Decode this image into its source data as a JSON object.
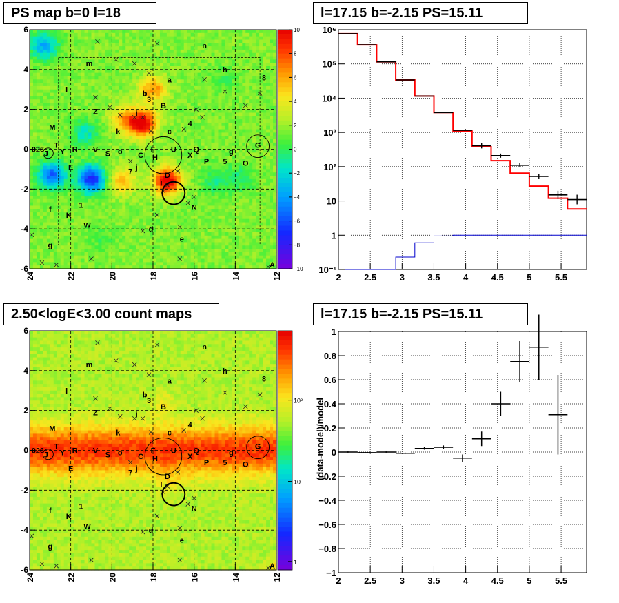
{
  "chart_data": [
    {
      "type": "heatmap",
      "title": "PS map b=0 l=18",
      "xlabel": "",
      "ylabel": "",
      "xlim": [
        24,
        12
      ],
      "ylim": [
        -6,
        6
      ],
      "x_ticks": [
        "24",
        "22",
        "20",
        "18",
        "16",
        "14",
        "12"
      ],
      "y_ticks": [
        "-6",
        "-4",
        "-2",
        "0",
        "2",
        "4",
        "6"
      ],
      "colorbar_ticks": [
        "10",
        "8",
        "6",
        "4",
        "2",
        "0",
        "−2",
        "−4",
        "−6",
        "−8",
        "−10"
      ],
      "colorbar_range": [
        -10,
        10
      ],
      "blobs": [
        {
          "l": 18.5,
          "b": 1.3,
          "level": 9
        },
        {
          "l": 17.3,
          "b": -1.6,
          "level": 9
        },
        {
          "l": 19.5,
          "b": -1.6,
          "level": 4
        },
        {
          "l": 18.0,
          "b": 3.0,
          "level": 5
        },
        {
          "l": 19.4,
          "b": 1.5,
          "level": 4
        },
        {
          "l": 21.0,
          "b": -1.5,
          "level": -9
        },
        {
          "l": 22.9,
          "b": -1.3,
          "level": -7
        },
        {
          "l": 21.3,
          "b": 0.8,
          "level": -3
        },
        {
          "l": 23.3,
          "b": 5.2,
          "level": -5
        },
        {
          "l": 15.0,
          "b": -1.6,
          "level": -2
        },
        {
          "l": 13.8,
          "b": -1.5,
          "level": -2
        },
        {
          "l": 20.5,
          "b": -4.5,
          "level": -1
        },
        {
          "l": 14.5,
          "b": 3.5,
          "level": -1
        }
      ]
    },
    {
      "type": "line",
      "title": "l=17.15 b=-2.15 PS=15.11",
      "xlabel": "",
      "ylabel": "",
      "xlim": [
        2,
        5.9
      ],
      "ylim": [
        0.1,
        1000000
      ],
      "log_y": true,
      "x_ticks": [
        "2",
        "2.5",
        "3",
        "3.5",
        "4",
        "4.5",
        "5",
        "5.5"
      ],
      "y_ticks": [
        "10⁻¹",
        "1",
        "10",
        "10²",
        "10³",
        "10⁴",
        "10⁵",
        "10⁶"
      ],
      "grid": true,
      "bin_edges": [
        2.0,
        2.3,
        2.6,
        2.9,
        3.2,
        3.5,
        3.8,
        4.1,
        4.4,
        4.7,
        5.0,
        5.3,
        5.6,
        5.9
      ],
      "series": [
        {
          "values": [
            760000,
            360000,
            115000,
            34000,
            11500,
            3800,
            1150,
            410,
            210,
            110,
            52,
            15,
            11
          ],
          "errors": [
            0,
            0,
            0,
            0,
            0,
            0,
            0,
            0.08,
            0.06,
            0.06,
            0.08,
            0.12,
            0.14
          ]
        },
        {
          "values": [
            760000,
            360000,
            115000,
            34000,
            11500,
            3800,
            1100,
            380,
            150,
            65,
            27,
            12,
            5.8
          ]
        },
        {
          "values": [
            0.1,
            0.1,
            0.1,
            0.23,
            0.6,
            0.95,
            1.0,
            1.0,
            1.0,
            1.0,
            1.0,
            1.0,
            1.0
          ]
        }
      ]
    },
    {
      "type": "heatmap",
      "title": "2.50<logE<3.00 count maps",
      "xlabel": "",
      "ylabel": "",
      "xlim": [
        24,
        12
      ],
      "ylim": [
        -6,
        6
      ],
      "x_ticks": [
        "24",
        "22",
        "20",
        "18",
        "16",
        "14",
        "12"
      ],
      "y_ticks": [
        "-6",
        "-4",
        "-2",
        "0",
        "2",
        "4",
        "6"
      ],
      "colorbar_ticks": [
        "10²",
        "10",
        "1"
      ],
      "colorbar_log": true
    },
    {
      "type": "scatter",
      "title": "l=17.15 b=-2.15 PS=15.11",
      "xlabel": "",
      "ylabel": "(data-model)/model",
      "xlim": [
        2,
        5.9
      ],
      "ylim": [
        -1,
        1
      ],
      "x_ticks": [
        "2",
        "2.5",
        "3",
        "3.5",
        "4",
        "4.5",
        "5",
        "5.5"
      ],
      "y_ticks": [
        "−1",
        "−0.8",
        "−0.6",
        "−0.4",
        "−0.2",
        "0",
        "0.2",
        "0.4",
        "0.6",
        "0.8",
        "1"
      ],
      "grid": true,
      "points": [
        {
          "x": 2.15,
          "y": 0.0,
          "ey": 0.005
        },
        {
          "x": 2.45,
          "y": -0.005,
          "ey": 0.005
        },
        {
          "x": 2.75,
          "y": 0.0,
          "ey": 0.005
        },
        {
          "x": 3.05,
          "y": -0.01,
          "ey": 0.005
        },
        {
          "x": 3.35,
          "y": 0.03,
          "ey": 0.01
        },
        {
          "x": 3.65,
          "y": 0.04,
          "ey": 0.015
        },
        {
          "x": 3.95,
          "y": -0.05,
          "ey": 0.03
        },
        {
          "x": 4.25,
          "y": 0.11,
          "ey": 0.06
        },
        {
          "x": 4.55,
          "y": 0.4,
          "ey": 0.1
        },
        {
          "x": 4.85,
          "y": 0.75,
          "ey": 0.17
        },
        {
          "x": 5.15,
          "y": 0.87,
          "ey": 0.27
        },
        {
          "x": 5.45,
          "y": 0.31,
          "ey": 0.33
        }
      ]
    }
  ],
  "sources": [
    {
      "label": "n",
      "l": 15.5,
      "b": 5.2
    },
    {
      "label": "m",
      "l": 21.1,
      "b": 4.3
    },
    {
      "label": "h",
      "l": 14.5,
      "b": 4.0
    },
    {
      "label": "8",
      "l": 12.6,
      "b": 3.6
    },
    {
      "label": "a",
      "l": 17.2,
      "b": 3.5
    },
    {
      "label": "l",
      "l": 22.2,
      "b": 3.0
    },
    {
      "label": "b",
      "l": 18.4,
      "b": 2.8
    },
    {
      "label": "3",
      "l": 18.2,
      "b": 2.5
    },
    {
      "label": "B",
      "l": 17.5,
      "b": 2.2
    },
    {
      "label": "Z",
      "l": 20.8,
      "b": 1.9
    },
    {
      "label": "i",
      "l": 18.8,
      "b": 1.8
    },
    {
      "label": "M",
      "l": 22.9,
      "b": 1.1
    },
    {
      "label": "k",
      "l": 19.7,
      "b": 0.9
    },
    {
      "label": "c",
      "l": 17.2,
      "b": 0.9
    },
    {
      "label": "4",
      "l": 16.2,
      "b": 1.3
    },
    {
      "label": "G",
      "l": 12.9,
      "b": 0.2
    },
    {
      "label": "0",
      "l": 23.8,
      "b": 0.0
    },
    {
      "label": "2",
      "l": 23.6,
      "b": 0.0
    },
    {
      "label": "6",
      "l": 23.4,
      "b": 0.0
    },
    {
      "label": "J",
      "l": 23.2,
      "b": -0.2
    },
    {
      "label": "T",
      "l": 22.7,
      "b": 0.2
    },
    {
      "label": "Y",
      "l": 22.4,
      "b": -0.1
    },
    {
      "label": "R",
      "l": 21.8,
      "b": 0.0
    },
    {
      "label": "V",
      "l": 20.8,
      "b": 0.0
    },
    {
      "label": "S",
      "l": 20.2,
      "b": -0.2
    },
    {
      "label": "o",
      "l": 19.6,
      "b": -0.1
    },
    {
      "label": "F",
      "l": 18.0,
      "b": 0.0
    },
    {
      "label": "U",
      "l": 17.0,
      "b": 0.0
    },
    {
      "label": "X",
      "l": 16.2,
      "b": -0.3
    },
    {
      "label": "Q",
      "l": 15.9,
      "b": 0.0
    },
    {
      "label": "g",
      "l": 14.2,
      "b": -0.1
    },
    {
      "label": "C",
      "l": 18.6,
      "b": -0.3
    },
    {
      "label": "H",
      "l": 17.9,
      "b": -0.4
    },
    {
      "label": "P",
      "l": 15.4,
      "b": -0.6
    },
    {
      "label": "5",
      "l": 14.5,
      "b": -0.6
    },
    {
      "label": "O",
      "l": 13.5,
      "b": -0.7
    },
    {
      "label": "E",
      "l": 22.0,
      "b": -0.9
    },
    {
      "label": "7",
      "l": 19.1,
      "b": -1.1
    },
    {
      "label": "j",
      "l": 18.8,
      "b": -0.9
    },
    {
      "label": "D",
      "l": 17.3,
      "b": -1.3
    },
    {
      "label": "I",
      "l": 17.6,
      "b": -1.7
    },
    {
      "label": "1",
      "l": 21.5,
      "b": -2.8
    },
    {
      "label": "N",
      "l": 16.0,
      "b": -2.9
    },
    {
      "label": "f",
      "l": 23.0,
      "b": -3.0
    },
    {
      "label": "K",
      "l": 22.1,
      "b": -3.3
    },
    {
      "label": "W",
      "l": 21.2,
      "b": -3.8
    },
    {
      "label": "d",
      "l": 18.1,
      "b": -4.0
    },
    {
      "label": "e",
      "l": 16.6,
      "b": -4.5
    },
    {
      "label": "g",
      "l": 23.0,
      "b": -4.8
    },
    {
      "label": "A",
      "l": 12.2,
      "b": -5.8
    }
  ],
  "crosses": [
    {
      "l": 17.8,
      "b": 5.3
    },
    {
      "l": 20.7,
      "b": 5.4
    },
    {
      "l": 19.8,
      "b": 4.5
    },
    {
      "l": 18.9,
      "b": 4.3
    },
    {
      "l": 18.2,
      "b": 3.8
    },
    {
      "l": 15.5,
      "b": 3.5
    },
    {
      "l": 20.8,
      "b": 2.6
    },
    {
      "l": 20.1,
      "b": 2.1
    },
    {
      "l": 19.6,
      "b": 1.7
    },
    {
      "l": 18.9,
      "b": 1.6
    },
    {
      "l": 18.5,
      "b": 1.6
    },
    {
      "l": 16.5,
      "b": 1.0
    },
    {
      "l": 15.9,
      "b": 2.0
    },
    {
      "l": 13.5,
      "b": 2.2
    },
    {
      "l": 12.8,
      "b": 2.8
    },
    {
      "l": 18.1,
      "b": 0.9
    },
    {
      "l": 15.6,
      "b": 1.6
    },
    {
      "l": 14.5,
      "b": 2.9
    },
    {
      "l": 16.8,
      "b": -1.1
    },
    {
      "l": 16.0,
      "b": -2.4
    },
    {
      "l": 16.3,
      "b": -2.7
    },
    {
      "l": 17.5,
      "b": -2.1
    },
    {
      "l": 17.3,
      "b": -1.8
    },
    {
      "l": 21.0,
      "b": -5.5
    },
    {
      "l": 23.4,
      "b": -5.7
    },
    {
      "l": 22.7,
      "b": -5.8
    },
    {
      "l": 16.7,
      "b": -5.5
    },
    {
      "l": 18.5,
      "b": -4.1
    },
    {
      "l": 12.4,
      "b": -5.9
    },
    {
      "l": 23.9,
      "b": -4.3
    },
    {
      "l": 19.1,
      "b": -0.6
    },
    {
      "l": 16.7,
      "b": -3.9
    },
    {
      "l": 17.8,
      "b": -3.3
    }
  ],
  "circles": [
    {
      "l": 17.5,
      "b": -0.3,
      "r": 0.9,
      "thick": false
    },
    {
      "l": 17.0,
      "b": -2.2,
      "r": 0.55,
      "thick": true
    },
    {
      "l": 12.9,
      "b": 0.15,
      "r": 0.55,
      "thick": false
    },
    {
      "l": 23.1,
      "b": -0.2,
      "r": 0.25,
      "thick": false
    }
  ]
}
